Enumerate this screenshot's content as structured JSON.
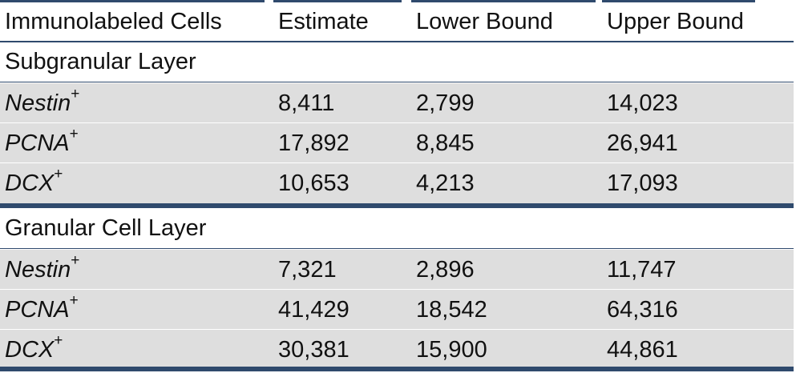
{
  "table": {
    "headers": [
      "Immunolabeled Cells",
      "Estimate",
      "Lower Bound",
      "Upper Bound"
    ],
    "sections": [
      {
        "title": "Subgranular Layer",
        "rows": [
          {
            "label": "Nestin",
            "sup": "+",
            "estimate": "8,411",
            "lower": "2,799",
            "upper": "14,023"
          },
          {
            "label": "PCNA",
            "sup": "+",
            "estimate": "17,892",
            "lower": "8,845",
            "upper": "26,941"
          },
          {
            "label": "DCX",
            "sup": "+",
            "estimate": "10,653",
            "lower": "4,213",
            "upper": "17,093"
          }
        ]
      },
      {
        "title": "Granular Cell Layer",
        "rows": [
          {
            "label": "Nestin",
            "sup": "+",
            "estimate": "7,321",
            "lower": "2,896",
            "upper": "11,747"
          },
          {
            "label": "PCNA",
            "sup": "+",
            "estimate": "41,429",
            "lower": "18,542",
            "upper": "64,316"
          },
          {
            "label": "DCX",
            "sup": "+",
            "estimate": "30,381",
            "lower": "15,900",
            "upper": "44,861"
          }
        ]
      }
    ]
  },
  "colors": {
    "rule": "#2f4a6d",
    "row_shade": "#dedede"
  }
}
